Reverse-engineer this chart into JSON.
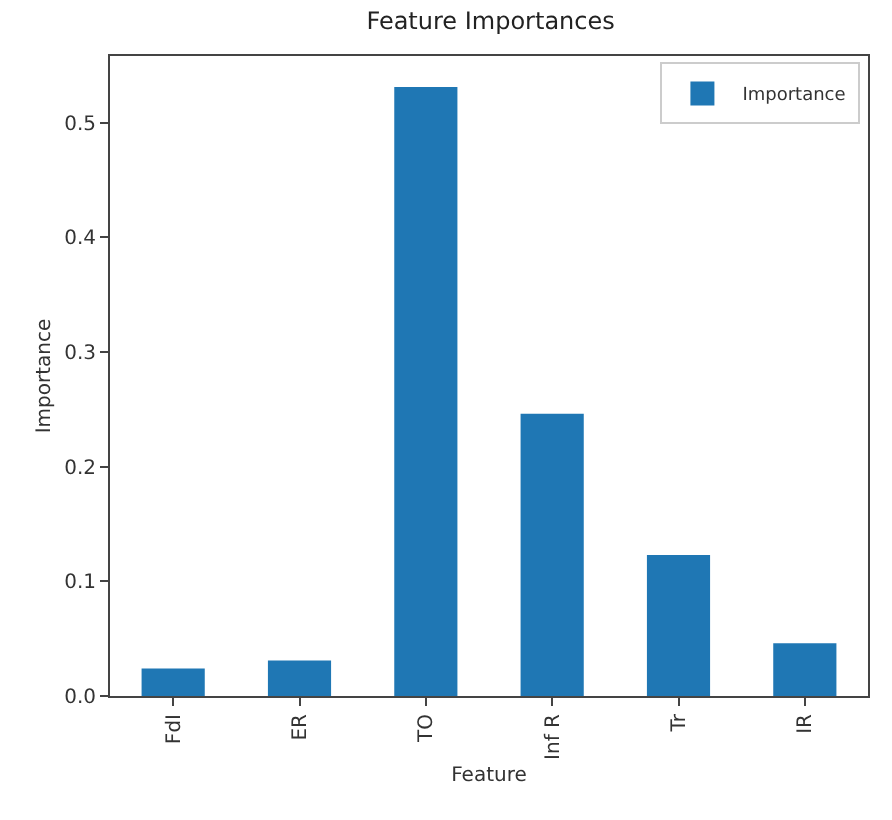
{
  "chart_data": {
    "type": "bar",
    "title": "Feature Importances",
    "xlabel": "Feature",
    "ylabel": "Importance",
    "categories": [
      "FdI",
      "ER",
      "TO",
      "Inf R",
      "Tr",
      "IR"
    ],
    "series": [
      {
        "name": "Importance",
        "color": "#1f77b4",
        "values": [
          0.024,
          0.031,
          0.531,
          0.246,
          0.123,
          0.046
        ]
      }
    ],
    "ylim": [
      0,
      0.558
    ],
    "yticks": [
      {
        "value": 0,
        "label": "0.0"
      },
      0.1,
      0.2,
      0.3,
      0.4,
      0.5
    ],
    "grid": false,
    "legend": "top right"
  }
}
